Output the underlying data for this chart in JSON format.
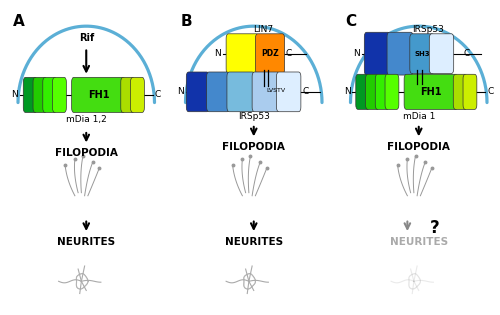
{
  "panel_A_label": "A",
  "panel_B_label": "B",
  "panel_C_label": "C",
  "arch_color": "#5bafd6",
  "rif_label": "Rif",
  "mdia12_label": "mDia 1,2",
  "mdia1_label": "mDia 1",
  "irsp53_label": "IRSp53",
  "lin7_label": "LIN7",
  "filopodia_label": "FILOPODIA",
  "neurites_label": "NEURITES",
  "question_mark": "?",
  "fh1_color": "#44dd11",
  "green1": "#009922",
  "green2": "#22cc00",
  "green3": "#33ee00",
  "green4": "#55ff00",
  "yellow_green1": "#aadd00",
  "yellow_green2": "#ccee00",
  "blue_dark": "#1133aa",
  "blue_mid": "#4488cc",
  "blue_light": "#77bbdd",
  "blue_lighter": "#aaccee",
  "blue_lightest": "#ddeeff",
  "yellow": "#ffff00",
  "orange": "#ff8800",
  "sh3_blue": "#4499cc",
  "N_label": "N",
  "C_label": "C",
  "LVSTV_label": "LVSTV",
  "SH3_label": "SH3",
  "PDZ_label": "PDZ",
  "FH1_label": "FH1"
}
